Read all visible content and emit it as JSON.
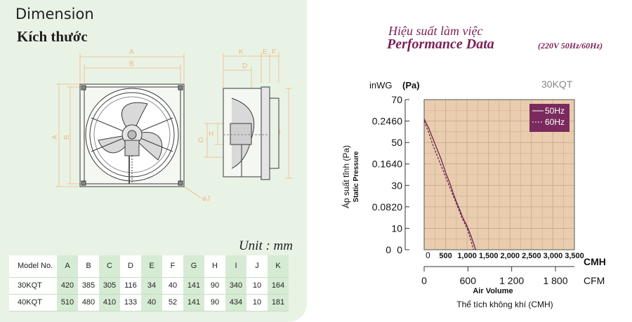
{
  "dimension": {
    "title": "Dimension",
    "subtitle": "Kích thước",
    "drawing_labels": [
      "A",
      "B",
      "A",
      "B",
      "K",
      "E",
      "F",
      "D",
      "H",
      "G",
      "I",
      "øC",
      "øJ"
    ],
    "unit": "Unit : mm"
  },
  "table": {
    "headers": [
      "Model No.",
      "A",
      "B",
      "C",
      "D",
      "E",
      "F",
      "G",
      "H",
      "I",
      "J",
      "K"
    ],
    "shaded_columns": [
      1,
      3,
      5,
      7,
      9,
      11
    ],
    "rows": [
      [
        "30KQT",
        "420",
        "385",
        "305",
        "116",
        "34",
        "40",
        "141",
        "90",
        "340",
        "10",
        "164"
      ],
      [
        "40KQT",
        "510",
        "480",
        "410",
        "133",
        "40",
        "52",
        "141",
        "90",
        "434",
        "10",
        "181"
      ]
    ]
  },
  "performance": {
    "title_vn": "Hiệu suất làm việc",
    "title_en": "Performance Data",
    "conditions": "(220V 50Hz/60Hz)"
  },
  "chart_data": {
    "type": "line",
    "model_label": "30KQT",
    "y_unit_left": "inWG",
    "y_unit_right": "(Pa)",
    "ylabel_vn": "Áp suất tĩnh (Pa)",
    "ylabel_en": "Static Pressure",
    "ylim": [
      0,
      70
    ],
    "y_ticks": [
      0,
      10,
      20,
      30,
      40,
      50,
      60,
      70
    ],
    "y_tick_labels": [
      "0",
      "10",
      "20",
      "30",
      "40",
      "50",
      "60",
      "70"
    ],
    "inwg_ticks": [
      {
        "pa": 0,
        "label": "0"
      },
      {
        "pa": 20,
        "label": "0.08"
      },
      {
        "pa": 40,
        "label": "0.16"
      },
      {
        "pa": 60,
        "label": "0.24"
      }
    ],
    "xlim": [
      0,
      3500
    ],
    "x_ticks": [
      500,
      1000,
      1500,
      2000,
      2500,
      3000,
      3500
    ],
    "x_tick_labels": [
      "500",
      "1,000",
      "1,500",
      "2,000",
      "2,500",
      "3,000",
      "3,500"
    ],
    "x_zero_label": "0",
    "x_unit": "CMH",
    "cfm_ticks": [
      0,
      600,
      1200,
      1800
    ],
    "cfm_tick_labels": [
      "0",
      "600",
      "1 200",
      "1 800"
    ],
    "cfm_unit": "CFM",
    "xlabel_en": "Air Volume",
    "xlabel_vn": "Thể tích không khí (CMH)",
    "grid": true,
    "legend_position": "top-right",
    "colors": {
      "plot_bg": "#e9cdae",
      "grid": "#c9a98e",
      "series": "#6e2550",
      "legend_bg": "#7a2a5c"
    },
    "series": [
      {
        "name": "50Hz",
        "style": "solid",
        "x": [
          0,
          100,
          200,
          300,
          400,
          500,
          600,
          700,
          800,
          900,
          1000,
          1100,
          1150,
          1200
        ],
        "y": [
          61,
          57,
          52,
          47,
          42,
          36,
          31,
          25,
          20,
          15,
          11,
          6,
          3,
          0
        ]
      },
      {
        "name": "60Hz",
        "style": "dashed",
        "x": [
          0,
          100,
          200,
          300,
          400,
          500,
          600,
          700,
          800,
          900,
          1000,
          1080,
          1150
        ],
        "y": [
          60,
          55,
          49,
          44,
          39,
          34,
          29,
          24,
          19,
          14,
          10,
          5,
          0
        ]
      }
    ]
  }
}
